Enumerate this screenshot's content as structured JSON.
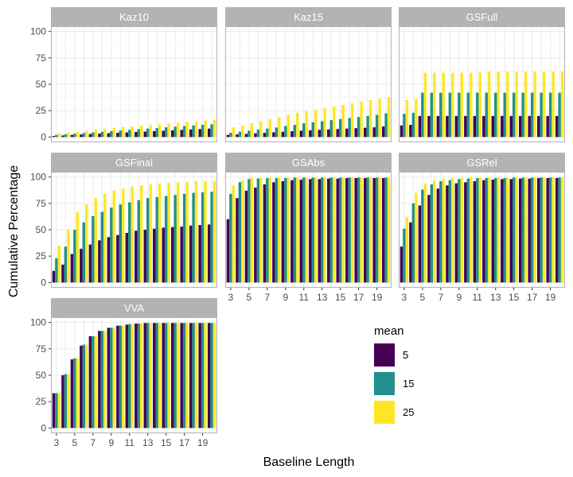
{
  "chart_data": {
    "type": "bar",
    "layout": "facet_wrap",
    "xlabel": "Baseline Length",
    "ylabel": "Cumulative Percentage",
    "ylim": [
      0,
      100
    ],
    "yticks": [
      0,
      25,
      50,
      75,
      100
    ],
    "x": [
      3,
      4,
      5,
      6,
      7,
      8,
      9,
      10,
      11,
      12,
      13,
      14,
      15,
      16,
      17,
      18,
      19,
      20
    ],
    "xticks": [
      3,
      5,
      7,
      9,
      11,
      13,
      15,
      17,
      19
    ],
    "grid": true,
    "legend": {
      "title": "mean",
      "position": "bottom-right",
      "entries": [
        {
          "label": "5",
          "color": "#440154"
        },
        {
          "label": "15",
          "color": "#21908C"
        },
        {
          "label": "25",
          "color": "#FDE725"
        }
      ]
    },
    "panels": [
      {
        "title": "Kaz10",
        "series": [
          {
            "name": "5",
            "values": [
              1,
              1.5,
              2,
              2.4,
              2.8,
              3.2,
              3.6,
              4,
              4.4,
              4.8,
              5.2,
              5.6,
              6,
              6.4,
              6.8,
              7.2,
              7.6,
              8
            ]
          },
          {
            "name": "15",
            "values": [
              2,
              2.6,
              3.2,
              3.8,
              4.4,
              5,
              5.6,
              6.2,
              6.8,
              7.4,
              8,
              8.6,
              9.2,
              9.8,
              10.4,
              11,
              11.6,
              12
            ]
          },
          {
            "name": "25",
            "values": [
              3.5,
              4.2,
              5,
              6,
              7,
              8,
              8.7,
              9.5,
              10.2,
              10.9,
              11.5,
              12.1,
              12.8,
              13.5,
              14.2,
              15,
              15.8,
              16.5
            ]
          }
        ]
      },
      {
        "title": "Kaz15",
        "series": [
          {
            "name": "5",
            "values": [
              2,
              2.5,
              3,
              3.5,
              4,
              4.5,
              5,
              5.5,
              6,
              6.4,
              6.8,
              7.2,
              7.6,
              8,
              8.4,
              8.8,
              9.2,
              10
            ]
          },
          {
            "name": "15",
            "values": [
              4,
              5,
              6,
              7,
              8,
              9,
              10.5,
              11.5,
              13,
              14,
              15,
              16,
              17,
              18,
              19,
              20,
              21,
              22.5
            ]
          },
          {
            "name": "25",
            "values": [
              9,
              11,
              13,
              15,
              17,
              19,
              21,
              23,
              24.5,
              26,
              27.5,
              29,
              30.5,
              32,
              33.5,
              35,
              36.5,
              38
            ]
          }
        ]
      },
      {
        "title": "GSFull",
        "series": [
          {
            "name": "5",
            "values": [
              11,
              11.5,
              20,
              20,
              20,
              20,
              20,
              20,
              20,
              20,
              20,
              20,
              20,
              20,
              20,
              20,
              20,
              20
            ]
          },
          {
            "name": "15",
            "values": [
              22,
              23,
              42,
              42,
              42,
              42,
              42,
              42,
              42,
              42,
              42,
              42,
              42,
              42,
              42,
              42,
              42,
              42
            ]
          },
          {
            "name": "25",
            "values": [
              35,
              36,
              61,
              61,
              61,
              61,
              61,
              61,
              61,
              62,
              62,
              62,
              62,
              62,
              62,
              62,
              62,
              62
            ]
          }
        ]
      },
      {
        "title": "GSFinal",
        "series": [
          {
            "name": "5",
            "values": [
              11,
              17,
              27,
              32,
              36,
              40,
              43,
              45,
              47,
              49,
              50,
              51,
              52,
              52.5,
              53,
              54,
              54.5,
              55
            ]
          },
          {
            "name": "15",
            "values": [
              23,
              34,
              50,
              57,
              63,
              67,
              71,
              74,
              76,
              78,
              80,
              81,
              82,
              83,
              84,
              85,
              85.5,
              86
            ]
          },
          {
            "name": "25",
            "values": [
              35,
              50,
              67,
              74,
              80,
              84,
              87,
              89,
              91,
              92,
              93,
              94,
              94.5,
              95,
              95.5,
              96,
              96,
              96
            ]
          }
        ]
      },
      {
        "title": "GSAbs",
        "series": [
          {
            "name": "5",
            "values": [
              60,
              80,
              87,
              90,
              93,
              95,
              96,
              97,
              97.5,
              98,
              98,
              98.5,
              98.5,
              99,
              99,
              99,
              99,
              99
            ]
          },
          {
            "name": "15",
            "values": [
              84,
              95,
              98,
              98.5,
              99,
              99,
              99,
              99.5,
              99.5,
              99.5,
              99.5,
              99.5,
              99.5,
              99.5,
              99.5,
              99.5,
              99.5,
              99.5
            ]
          },
          {
            "name": "25",
            "values": [
              92,
              97,
              99,
              99.5,
              99.5,
              99.5,
              99.5,
              99.5,
              99.5,
              99.5,
              99.5,
              99.5,
              99.5,
              99.5,
              99.5,
              99.5,
              99.5,
              99.5
            ]
          }
        ]
      },
      {
        "title": "GSRel",
        "series": [
          {
            "name": "5",
            "values": [
              34,
              57,
              73,
              83,
              89,
              92,
              94,
              95,
              96,
              97,
              97.5,
              98,
              98,
              98.5,
              98.5,
              99,
              99,
              99
            ]
          },
          {
            "name": "15",
            "values": [
              51,
              75,
              88,
              93,
              96,
              97,
              98,
              98.5,
              99,
              99,
              99,
              99,
              99.5,
              99.5,
              99.5,
              99.5,
              99.5,
              99.5
            ]
          },
          {
            "name": "25",
            "values": [
              62,
              85,
              94,
              97,
              98,
              99,
              99,
              99.5,
              99.5,
              99.5,
              99.5,
              99.5,
              99.5,
              99.5,
              99.5,
              99.5,
              99.5,
              99.5
            ]
          }
        ]
      },
      {
        "title": "VVA",
        "series": [
          {
            "name": "5",
            "values": [
              33,
              50,
              65,
              78,
              87,
              92,
              95,
              97,
              98,
              99,
              99.5,
              99.5,
              99.5,
              99.5,
              99.5,
              99.5,
              99.5,
              99.5
            ]
          },
          {
            "name": "15",
            "values": [
              33,
              51,
              66,
              79,
              87,
              92,
              95,
              97,
              98.5,
              99,
              99.5,
              99.5,
              99.5,
              99.5,
              99.5,
              99.5,
              99.5,
              99.5
            ]
          },
          {
            "name": "25",
            "values": [
              33,
              51,
              66,
              79,
              87,
              92,
              95,
              97,
              98.5,
              99,
              99.5,
              99.5,
              99.5,
              99.5,
              99.5,
              99.5,
              99.5,
              99.5
            ]
          }
        ]
      }
    ]
  }
}
